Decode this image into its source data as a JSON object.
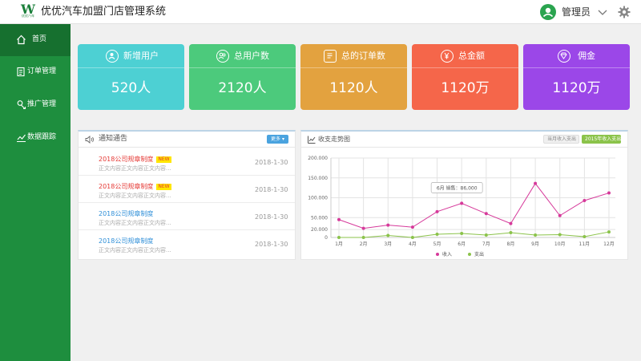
{
  "header": {
    "logo_mark": "W",
    "logo_text": "优优汽车",
    "app_title": "优优汽车加盟门店管理系统",
    "user_name": "管理员"
  },
  "sidebar": {
    "items": [
      {
        "label": "首页",
        "icon": "home-icon",
        "active": true
      },
      {
        "label": "订单管理",
        "icon": "order-icon"
      },
      {
        "label": "推广管理",
        "icon": "promotion-icon"
      },
      {
        "label": "数据跟踪",
        "icon": "data-chart-icon"
      }
    ]
  },
  "cards": [
    {
      "title": "新增用户",
      "value": "520人",
      "color": "#4dd0d3",
      "icon": "user-icon"
    },
    {
      "title": "总用户数",
      "value": "2120人",
      "color": "#4cca7c",
      "icon": "users-icon"
    },
    {
      "title": "总的订单数",
      "value": "1120人",
      "color": "#e3a23f",
      "icon": "order-icon"
    },
    {
      "title": "总金额",
      "value": "1120万",
      "color": "#f5664a",
      "icon": "yen-icon"
    },
    {
      "title": "佣金",
      "value": "1120万",
      "color": "#9b47e8",
      "icon": "diamond-icon"
    }
  ],
  "notice": {
    "title": "通知通告",
    "more_label": "更多 ▾",
    "new_badge": "NEW",
    "rows": [
      {
        "title": "2018公司规章制度",
        "body": "正文内容正文内容正文内容...",
        "date": "2018-1-30",
        "is_new": true,
        "color": "#e53935"
      },
      {
        "title": "2018公司规章制度",
        "body": "正文内容正文内容正文内容...",
        "date": "2018-1-30",
        "is_new": true,
        "color": "#e53935"
      },
      {
        "title": "2018公司规章制度",
        "body": "正文内容正文内容正文内容...",
        "date": "2018-1-30",
        "is_new": false,
        "color": "#2f8fd8"
      },
      {
        "title": "2018公司规章制度",
        "body": "正文内容正文内容正文内容...",
        "date": "2018-1-30",
        "is_new": false,
        "color": "#2f8fd8"
      }
    ]
  },
  "chart_panel": {
    "title": "收支走势图",
    "tab_month": "当月收入支出",
    "tab_year": "2015年收入支出",
    "tooltip": "6月 销售：86,000"
  },
  "chart_data": {
    "type": "line",
    "categories": [
      "1月",
      "2月",
      "3月",
      "4月",
      "5月",
      "6月",
      "7月",
      "8月",
      "9月",
      "10月",
      "11月",
      "12月"
    ],
    "series": [
      {
        "name": "收入",
        "color": "#d6399a",
        "values": [
          45000,
          23000,
          31000,
          26000,
          65000,
          86000,
          60000,
          35000,
          136000,
          55000,
          93000,
          112000
        ]
      },
      {
        "name": "支出",
        "color": "#8bc34a",
        "values": [
          0,
          0,
          5000,
          0,
          8000,
          10000,
          6000,
          12000,
          6000,
          7000,
          2000,
          14000
        ]
      }
    ],
    "y_ticks": [
      0,
      20000,
      50000,
      100000,
      150000,
      200000
    ],
    "y_tick_labels": [
      "0",
      "20.000",
      "50.000",
      "100.000",
      "150.000",
      "200.000"
    ],
    "ylim": [
      0,
      200000
    ],
    "grid": true,
    "legend": "bottom"
  }
}
